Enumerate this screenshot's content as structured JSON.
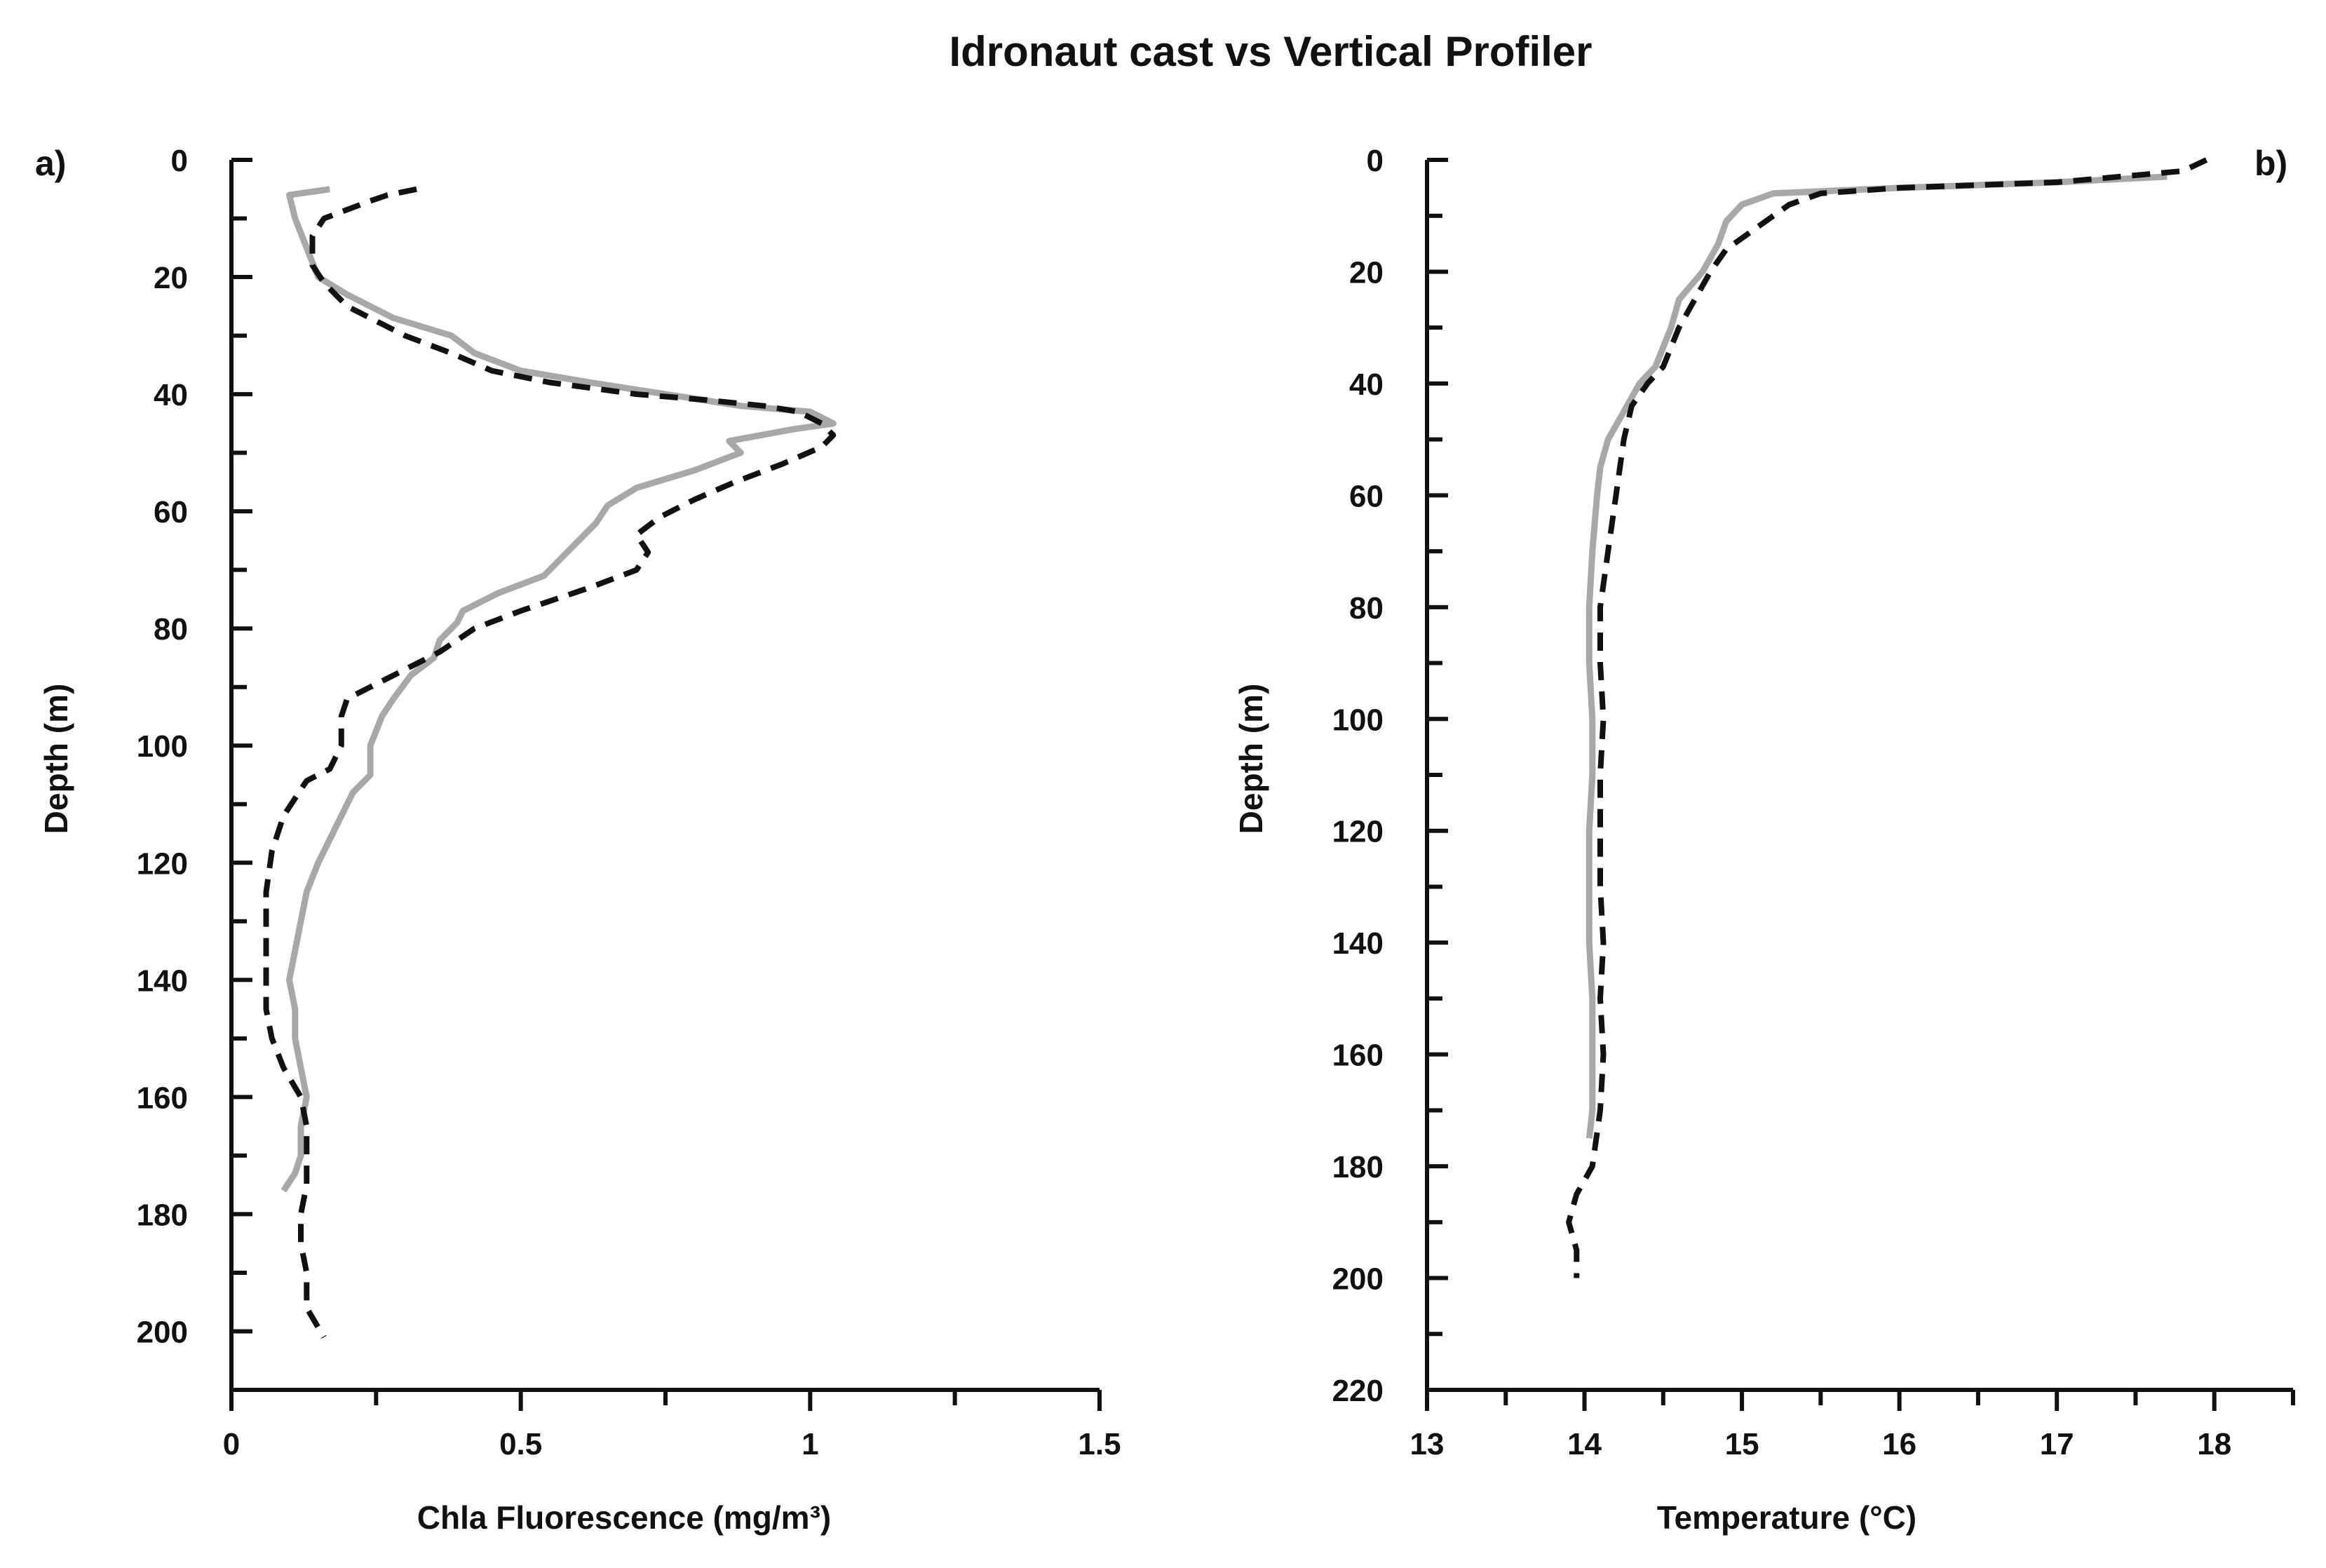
{
  "title": "Idronaut cast vs Vertical Profiler",
  "chart_data": [
    {
      "type": "line",
      "panel_label": "a)",
      "xlabel": "Chla Fluorescence (mg/m³)",
      "ylabel": "Depth (m)",
      "xlim": [
        0,
        1.5
      ],
      "ylim": [
        0,
        210
      ],
      "y_inverted": true,
      "x_ticks": [
        0,
        0.5,
        1,
        1.5
      ],
      "x_tick_labels": [
        "0",
        "0.5",
        "1",
        "1.5"
      ],
      "x_minor_step": 0.25,
      "y_ticks": [
        0,
        20,
        40,
        60,
        80,
        100,
        120,
        140,
        160,
        180,
        200
      ],
      "y_tick_labels": [
        "0",
        "20",
        "40",
        "60",
        "80",
        "100",
        "120",
        "140",
        "160",
        "180",
        "200"
      ],
      "y_minor_step": 10,
      "series": [
        {
          "name": "Idronaut cast",
          "color": "#111111",
          "dash": "dashed",
          "points": [
            [
              0.32,
              5
            ],
            [
              0.27,
              6
            ],
            [
              0.24,
              7
            ],
            [
              0.16,
              10
            ],
            [
              0.14,
              13
            ],
            [
              0.14,
              18
            ],
            [
              0.16,
              21
            ],
            [
              0.2,
              25
            ],
            [
              0.3,
              30
            ],
            [
              0.38,
              33
            ],
            [
              0.45,
              36
            ],
            [
              0.55,
              38
            ],
            [
              0.7,
              40
            ],
            [
              0.82,
              41
            ],
            [
              0.92,
              42
            ],
            [
              0.98,
              43
            ],
            [
              1.02,
              45
            ],
            [
              1.04,
              47
            ],
            [
              1.02,
              49
            ],
            [
              0.95,
              52
            ],
            [
              0.87,
              55
            ],
            [
              0.8,
              58
            ],
            [
              0.74,
              61
            ],
            [
              0.7,
              64
            ],
            [
              0.72,
              67
            ],
            [
              0.7,
              70
            ],
            [
              0.62,
              73
            ],
            [
              0.5,
              77
            ],
            [
              0.42,
              80
            ],
            [
              0.36,
              84
            ],
            [
              0.3,
              87
            ],
            [
              0.24,
              90
            ],
            [
              0.2,
              92
            ],
            [
              0.19,
              95
            ],
            [
              0.19,
              100
            ],
            [
              0.17,
              104
            ],
            [
              0.13,
              106
            ],
            [
              0.09,
              112
            ],
            [
              0.07,
              118
            ],
            [
              0.06,
              125
            ],
            [
              0.06,
              130
            ],
            [
              0.06,
              135
            ],
            [
              0.06,
              140
            ],
            [
              0.06,
              145
            ],
            [
              0.07,
              150
            ],
            [
              0.09,
              155
            ],
            [
              0.12,
              160
            ],
            [
              0.13,
              165
            ],
            [
              0.13,
              170
            ],
            [
              0.13,
              175
            ],
            [
              0.12,
              180
            ],
            [
              0.12,
              185
            ],
            [
              0.13,
              190
            ],
            [
              0.13,
              196
            ],
            [
              0.16,
              201
            ]
          ]
        },
        {
          "name": "Vertical Profiler",
          "color": "#a8a8a8",
          "dash": "solid",
          "points": [
            [
              0.17,
              5
            ],
            [
              0.1,
              6
            ],
            [
              0.11,
              10
            ],
            [
              0.13,
              15
            ],
            [
              0.15,
              20
            ],
            [
              0.2,
              23
            ],
            [
              0.28,
              27
            ],
            [
              0.38,
              30
            ],
            [
              0.42,
              33
            ],
            [
              0.5,
              36
            ],
            [
              0.62,
              38
            ],
            [
              0.75,
              40
            ],
            [
              0.88,
              42
            ],
            [
              1.0,
              43
            ],
            [
              1.04,
              45
            ],
            [
              0.97,
              46
            ],
            [
              0.86,
              48
            ],
            [
              0.88,
              50
            ],
            [
              0.8,
              53
            ],
            [
              0.7,
              56
            ],
            [
              0.65,
              59
            ],
            [
              0.63,
              62
            ],
            [
              0.6,
              65
            ],
            [
              0.57,
              68
            ],
            [
              0.54,
              71
            ],
            [
              0.46,
              74
            ],
            [
              0.4,
              77
            ],
            [
              0.39,
              79
            ],
            [
              0.36,
              82
            ],
            [
              0.35,
              85
            ],
            [
              0.31,
              88
            ],
            [
              0.28,
              92
            ],
            [
              0.26,
              95
            ],
            [
              0.24,
              100
            ],
            [
              0.24,
              105
            ],
            [
              0.21,
              108
            ],
            [
              0.19,
              112
            ],
            [
              0.17,
              116
            ],
            [
              0.15,
              120
            ],
            [
              0.13,
              125
            ],
            [
              0.12,
              130
            ],
            [
              0.11,
              135
            ],
            [
              0.1,
              140
            ],
            [
              0.11,
              145
            ],
            [
              0.11,
              150
            ],
            [
              0.12,
              155
            ],
            [
              0.13,
              160
            ],
            [
              0.12,
              165
            ],
            [
              0.12,
              170
            ],
            [
              0.11,
              173
            ],
            [
              0.09,
              176
            ]
          ]
        }
      ]
    },
    {
      "type": "line",
      "panel_label": "b)",
      "xlabel": "Temperature (°C)",
      "ylabel": "Depth (m)",
      "xlim": [
        13,
        18.5
      ],
      "ylim": [
        0,
        220
      ],
      "y_inverted": true,
      "x_ticks": [
        13,
        14,
        15,
        16,
        17,
        18
      ],
      "x_tick_labels": [
        "13",
        "14",
        "15",
        "16",
        "17",
        "18"
      ],
      "x_minor_step": 0.5,
      "y_ticks": [
        0,
        20,
        40,
        60,
        80,
        100,
        120,
        140,
        160,
        180,
        200,
        220
      ],
      "y_tick_labels": [
        "0",
        "20",
        "40",
        "60",
        "80",
        "100",
        "120",
        "140",
        "160",
        "180",
        "200",
        "220"
      ],
      "y_minor_step": 10,
      "series": [
        {
          "name": "Idronaut cast",
          "color": "#111111",
          "dash": "dashed",
          "points": [
            [
              17.95,
              0
            ],
            [
              17.8,
              2
            ],
            [
              17.0,
              4
            ],
            [
              16.0,
              5
            ],
            [
              15.5,
              6
            ],
            [
              15.3,
              8
            ],
            [
              15.2,
              10
            ],
            [
              15.05,
              13
            ],
            [
              14.9,
              16
            ],
            [
              14.8,
              20
            ],
            [
              14.7,
              25
            ],
            [
              14.6,
              30
            ],
            [
              14.5,
              37
            ],
            [
              14.4,
              40
            ],
            [
              14.3,
              44
            ],
            [
              14.25,
              50
            ],
            [
              14.2,
              60
            ],
            [
              14.15,
              70
            ],
            [
              14.1,
              80
            ],
            [
              14.1,
              90
            ],
            [
              14.12,
              100
            ],
            [
              14.1,
              110
            ],
            [
              14.1,
              120
            ],
            [
              14.1,
              130
            ],
            [
              14.12,
              140
            ],
            [
              14.1,
              150
            ],
            [
              14.12,
              160
            ],
            [
              14.1,
              170
            ],
            [
              14.05,
              180
            ],
            [
              13.95,
              185
            ],
            [
              13.9,
              190
            ],
            [
              13.95,
              195
            ],
            [
              13.95,
              200
            ]
          ]
        },
        {
          "name": "Vertical Profiler",
          "color": "#a8a8a8",
          "dash": "solid",
          "points": [
            [
              17.7,
              3
            ],
            [
              17.0,
              4
            ],
            [
              16.0,
              5
            ],
            [
              15.2,
              6
            ],
            [
              15.0,
              8
            ],
            [
              14.9,
              11
            ],
            [
              14.85,
              15
            ],
            [
              14.75,
              20
            ],
            [
              14.6,
              25
            ],
            [
              14.55,
              30
            ],
            [
              14.45,
              37
            ],
            [
              14.35,
              40
            ],
            [
              14.25,
              45
            ],
            [
              14.15,
              50
            ],
            [
              14.1,
              55
            ],
            [
              14.08,
              60
            ],
            [
              14.05,
              70
            ],
            [
              14.03,
              80
            ],
            [
              14.03,
              90
            ],
            [
              14.05,
              100
            ],
            [
              14.05,
              110
            ],
            [
              14.03,
              120
            ],
            [
              14.03,
              130
            ],
            [
              14.03,
              140
            ],
            [
              14.05,
              150
            ],
            [
              14.05,
              160
            ],
            [
              14.05,
              170
            ],
            [
              14.03,
              175
            ]
          ]
        }
      ]
    }
  ]
}
